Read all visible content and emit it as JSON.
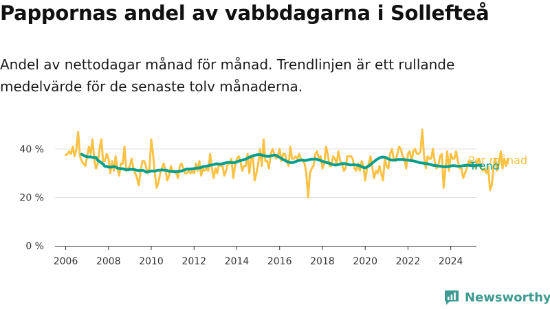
{
  "title": "Pappornas andel av vabbdagarna i Sollefteå",
  "subtitle": "Andel av nettodagar månad för månad. Trendlinjen är ett rullande medelvärde för de senaste tolv månaderna.",
  "brand": "Newsworthy",
  "colors": {
    "monthly": "#fbc143",
    "trend": "#009e8c",
    "grid": "#dddddd",
    "axis": "#333333",
    "brand": "#3d9a91"
  },
  "chart_data": {
    "type": "line",
    "x_start": "2006-01",
    "x_frequency": "monthly",
    "x_ticks": [
      "2006",
      "2008",
      "2010",
      "2012",
      "2014",
      "2016",
      "2018",
      "2020",
      "2022",
      "2024"
    ],
    "y_ticks": [
      "0 %",
      "20 %",
      "40 %"
    ],
    "ylim": [
      0,
      50
    ],
    "grid": true,
    "series": [
      {
        "name": "Per månad",
        "values": [
          37.5,
          38,
          39,
          38,
          41,
          37,
          40,
          47,
          37,
          35,
          34,
          33,
          37,
          41,
          38,
          44,
          36,
          32,
          34,
          40,
          44,
          35,
          35,
          38,
          36,
          30,
          35,
          31,
          37,
          32,
          29,
          34,
          34,
          41,
          31,
          32,
          33,
          36,
          32,
          30,
          28,
          25,
          31,
          35,
          35,
          33,
          30,
          32,
          44,
          38,
          30,
          24,
          26,
          30,
          32,
          34,
          31,
          27,
          29,
          33,
          31,
          31,
          30,
          28,
          33,
          34,
          32,
          30,
          30,
          31,
          30,
          31,
          30,
          34,
          31,
          35,
          29,
          32,
          31,
          32,
          31,
          38,
          32,
          28,
          32,
          30,
          34,
          33,
          33,
          29,
          31,
          34,
          34,
          36,
          28,
          33,
          36,
          37,
          35,
          31,
          33,
          33,
          38,
          30,
          36,
          37,
          27,
          30,
          34,
          40,
          33,
          44,
          35,
          35,
          32,
          38,
          40,
          38,
          36,
          37,
          40,
          35,
          38,
          38,
          35,
          33,
          41,
          36,
          36,
          37,
          36,
          38,
          36,
          35,
          34,
          30,
          20,
          30,
          32,
          33,
          38,
          39,
          36,
          37,
          32,
          34,
          41,
          38,
          33,
          33,
          37,
          36,
          34,
          39,
          35,
          34,
          31,
          32,
          37,
          37,
          37,
          36,
          32,
          31,
          34,
          31,
          35,
          33,
          27,
          32,
          34,
          37,
          32,
          28,
          31,
          30,
          33,
          30,
          27,
          36,
          33,
          32,
          38,
          40,
          36,
          35,
          38,
          41,
          40,
          37,
          36,
          32,
          38,
          39,
          35,
          39,
          40,
          38,
          38,
          39,
          48,
          37,
          32,
          37,
          36,
          36,
          40,
          35,
          32,
          33,
          37,
          38,
          24,
          32,
          39,
          31,
          38,
          36,
          36,
          39,
          35,
          32,
          32,
          28,
          30,
          32,
          35,
          34,
          34,
          33,
          32,
          35,
          36,
          32,
          31,
          32,
          30,
          33,
          23,
          25,
          33,
          36,
          31,
          34,
          39,
          32,
          36,
          33,
          36
        ]
      },
      {
        "name": "Trend",
        "values": [
          37.8,
          37.4,
          37,
          36.8,
          36.7,
          36.8,
          36.5,
          36.5,
          36.5,
          35.3,
          34.9,
          34.3,
          33.8,
          32.8,
          32.8,
          32.5,
          32.5,
          32.6,
          32.7,
          32.6,
          32.1,
          32,
          31.8,
          31.9,
          31.6,
          31.4,
          31.4,
          31.6,
          31.6,
          31.6,
          31.4,
          31.2,
          31.1,
          31.2,
          31.2,
          31,
          30.5,
          30.5,
          30.7,
          30.9,
          30.9,
          30.8,
          31.1,
          31.3,
          31.3,
          31.4,
          31.3,
          31.3,
          31.1,
          30.8,
          30.7,
          30.7,
          30.6,
          30.6,
          30.7,
          30.8,
          30.9,
          31.2,
          31.5,
          31.7,
          31.7,
          31.7,
          31.8,
          31.9,
          32.1,
          32.1,
          32.2,
          32.4,
          32.7,
          32.8,
          32.9,
          33.1,
          33.3,
          33.4,
          33.6,
          33.8,
          33.9,
          33.8,
          33.8,
          33.9,
          34.1,
          34.3,
          34.5,
          34.5,
          34.4,
          34.3,
          34.5,
          34.7,
          35,
          35.2,
          35.4,
          35.6,
          35.8,
          36.2,
          36.6,
          36.9,
          37.2,
          37.4,
          37.6,
          37.7,
          37.7,
          37.5,
          37.2,
          37.1,
          37,
          37,
          37.1,
          37.3,
          37.5,
          37.4,
          37,
          36.5,
          36.1,
          35.7,
          35.3,
          34.9,
          34.6,
          34.4,
          34.4,
          34.5,
          34.8,
          35.1,
          35.3,
          35.4,
          35.4,
          35.3,
          35.3,
          35.5,
          35.7,
          35.8,
          35.8,
          35.9,
          35.7,
          35.5,
          35.2,
          34.9,
          34.7,
          34.5,
          34.3,
          34.1,
          33.8,
          33.6,
          33.4,
          33.4,
          33.6,
          33.8,
          33.9,
          34,
          33.9,
          33.7,
          33.5,
          33.4,
          33.5,
          33.5,
          33.4,
          33.3,
          33.1,
          32.7,
          32.4,
          32.2,
          32.5,
          33,
          33.6,
          34.2,
          34.8,
          35.4,
          35.9,
          36.3,
          36.6,
          36.7,
          36.6,
          36.3,
          35.9,
          35.6,
          35.4,
          35.4,
          35.5,
          35.6,
          35.7,
          35.7,
          35.7,
          35.6,
          35.5,
          35.4,
          35.3,
          35.2,
          35.1,
          34.9,
          34.7,
          34.5,
          34.3,
          34.2,
          34.1,
          34,
          33.9,
          33.7,
          33.5,
          33.3,
          33.2,
          33.1,
          33,
          32.9,
          32.8,
          32.7,
          32.7,
          32.7,
          32.8,
          33,
          33.1,
          33.1,
          33,
          32.9,
          32.9,
          33,
          33.1,
          33.2,
          33.3,
          33.3,
          33.2,
          33.1,
          33.1,
          33.2,
          33.3,
          33.3,
          33.2
        ]
      }
    ],
    "trend_x_start": "2006-10"
  }
}
